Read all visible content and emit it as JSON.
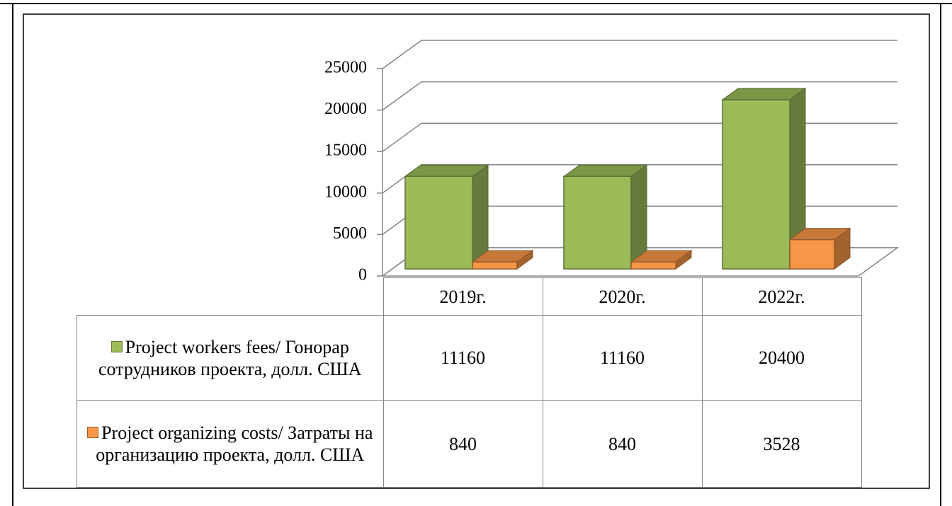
{
  "chart_data": {
    "type": "bar3d",
    "categories": [
      "2019г.",
      "2020г.",
      "2022г."
    ],
    "series": [
      {
        "name": "Project workers fees/ Гонорар сотрудников проекта, долл. США",
        "color": "#9bbb59",
        "values": [
          11160,
          11160,
          20400
        ]
      },
      {
        "name": "Project organizing costs/ Затраты на организацию проекта, долл. США",
        "color": "#f79646",
        "values": [
          840,
          840,
          3528
        ]
      }
    ],
    "ylim": [
      0,
      25000
    ],
    "yticks": [
      0,
      5000,
      10000,
      15000,
      20000,
      25000
    ],
    "grid": true
  }
}
